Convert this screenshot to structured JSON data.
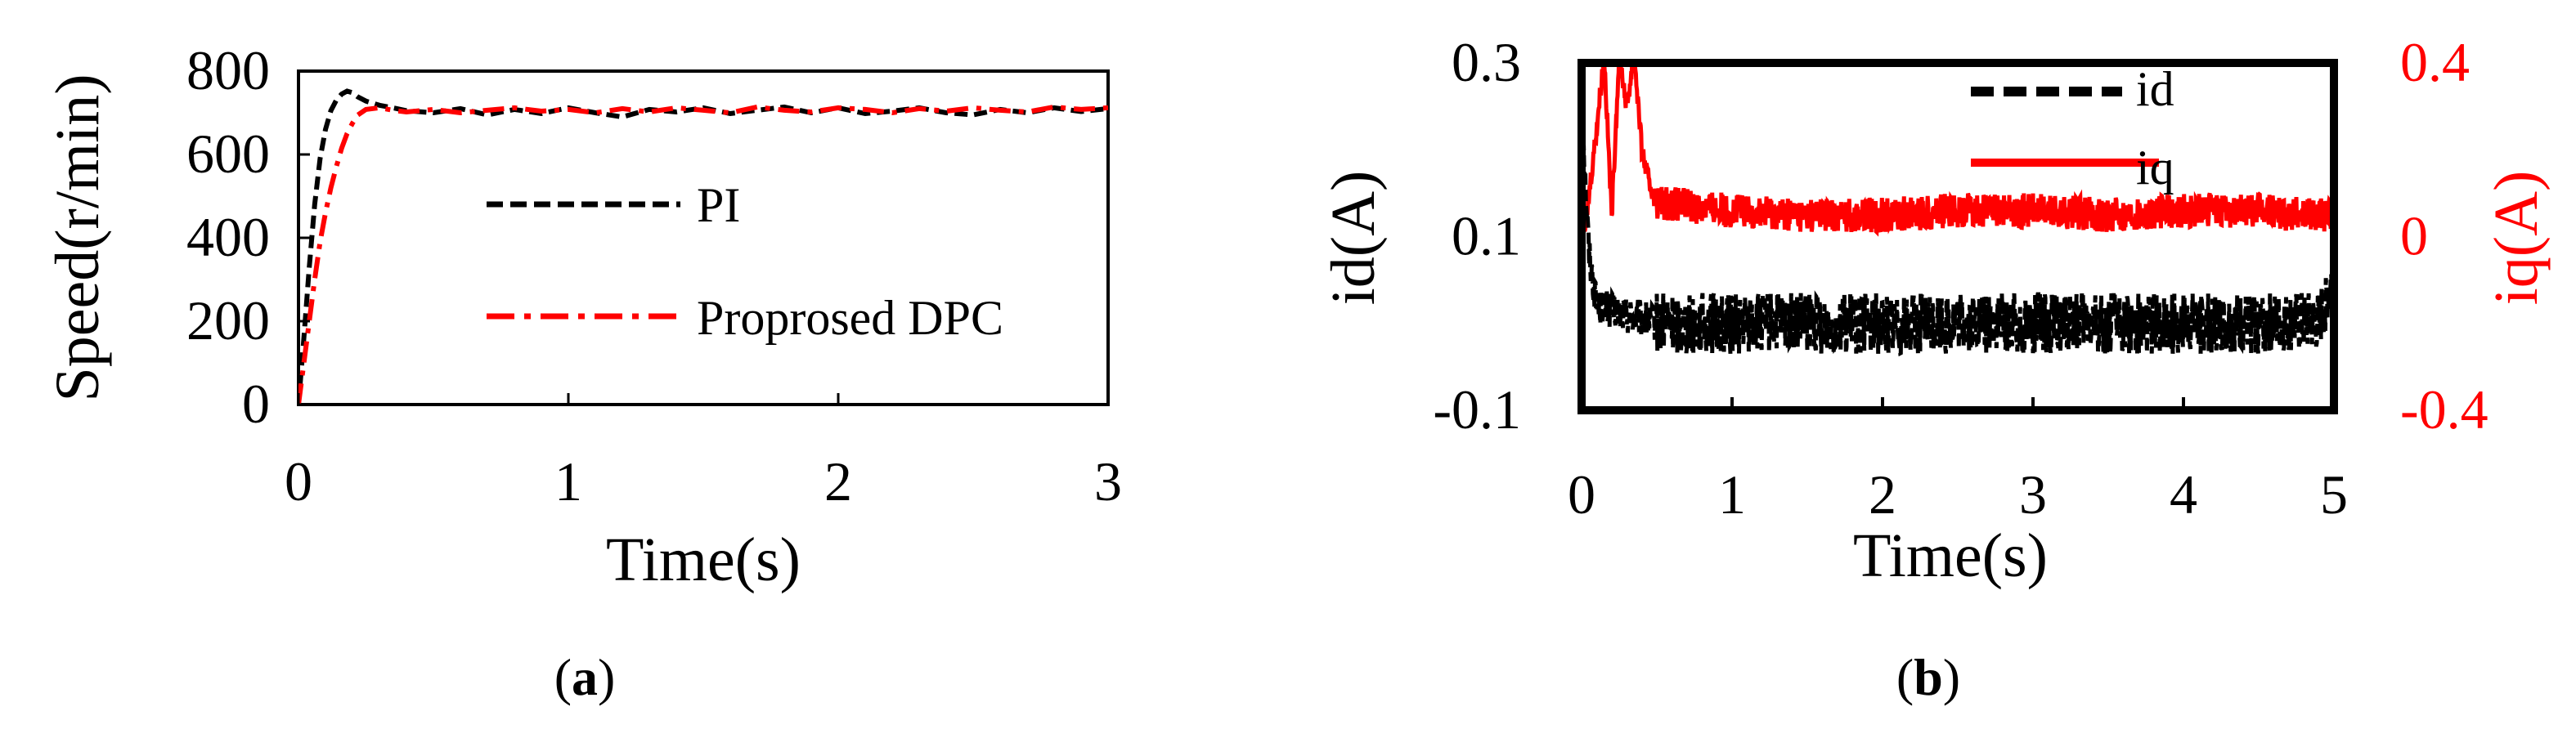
{
  "chart_data": [
    {
      "type": "line",
      "panel_label": "a",
      "xlabel": "Time(s)",
      "ylabel": "Speed(r/min)",
      "xlim": [
        0,
        3
      ],
      "ylim": [
        0,
        800
      ],
      "xticks": [
        "0",
        "1",
        "2",
        "3"
      ],
      "yticks": [
        "0",
        "200",
        "400",
        "600",
        "800"
      ],
      "grid": false,
      "legend_position": "center-right",
      "series": [
        {
          "name": "PI",
          "color": "#000000",
          "style": "dashed",
          "x": [
            0,
            0.02,
            0.04,
            0.06,
            0.08,
            0.1,
            0.12,
            0.14,
            0.16,
            0.18,
            0.2,
            0.22,
            0.25,
            0.3,
            0.35,
            0.4,
            0.5,
            0.6,
            0.7,
            0.8,
            0.9,
            1.0,
            1.1,
            1.2,
            1.3,
            1.4,
            1.5,
            1.6,
            1.7,
            1.8,
            1.9,
            2.0,
            2.1,
            2.2,
            2.3,
            2.4,
            2.5,
            2.6,
            2.7,
            2.8,
            2.9,
            3.0
          ],
          "y": [
            0,
            160,
            330,
            480,
            590,
            660,
            705,
            730,
            745,
            752,
            748,
            738,
            728,
            718,
            712,
            705,
            700,
            710,
            695,
            708,
            698,
            712,
            700,
            690,
            708,
            702,
            712,
            698,
            706,
            714,
            700,
            712,
            698,
            704,
            712,
            700,
            695,
            708,
            700,
            712,
            703,
            710
          ]
        },
        {
          "name": "Proprosed DPC",
          "color": "#ff0000",
          "style": "dashdot",
          "x": [
            0,
            0.02,
            0.04,
            0.06,
            0.08,
            0.1,
            0.12,
            0.14,
            0.16,
            0.18,
            0.2,
            0.22,
            0.25,
            0.3,
            0.35,
            0.4,
            0.5,
            0.6,
            0.7,
            0.8,
            0.9,
            1.0,
            1.1,
            1.2,
            1.3,
            1.4,
            1.5,
            1.6,
            1.7,
            1.8,
            1.9,
            2.0,
            2.1,
            2.2,
            2.3,
            2.4,
            2.5,
            2.6,
            2.7,
            2.8,
            2.9,
            3.0
          ],
          "y": [
            0,
            100,
            200,
            300,
            390,
            460,
            520,
            570,
            615,
            650,
            675,
            695,
            708,
            712,
            706,
            702,
            708,
            700,
            706,
            712,
            704,
            708,
            700,
            710,
            702,
            712,
            706,
            700,
            714,
            706,
            702,
            712,
            708,
            700,
            710,
            704,
            712,
            706,
            702,
            714,
            708,
            712
          ]
        }
      ]
    },
    {
      "type": "line",
      "panel_label": "b",
      "xlabel": "Time(s)",
      "ylabel": "id(A)",
      "y2label": "iq(A)",
      "xlim": [
        0,
        5
      ],
      "ylim": [
        -0.1,
        0.3
      ],
      "y2lim": [
        -0.4,
        0.4
      ],
      "xticks": [
        "0",
        "1",
        "2",
        "3",
        "4",
        "5"
      ],
      "yticks": [
        "-0.1",
        "0.1",
        "0.3"
      ],
      "y2ticks": [
        "-0.4",
        "0",
        "0.4"
      ],
      "grid": false,
      "legend_position": "top-right",
      "y2_color": "#ff0000",
      "series": [
        {
          "name": "id",
          "axis": "left",
          "color": "#000000",
          "style": "dashed",
          "x": [
            0,
            0.02,
            0.05,
            0.1,
            0.5,
            1,
            1.5,
            2,
            2.5,
            3,
            3.5,
            4,
            4.5,
            4.9,
            4.95,
            5.0
          ],
          "y": [
            0.27,
            0.18,
            0.08,
            0.02,
            0.0,
            0.0,
            0.0,
            0.0,
            0.0,
            0.0,
            0.0,
            0.0,
            0.0,
            0.0,
            0.03,
            0.06
          ],
          "noise_amplitude": 0.035
        },
        {
          "name": "iq",
          "axis": "right",
          "color": "#ff0000",
          "style": "solid",
          "x": [
            0,
            0.05,
            0.1,
            0.15,
            0.2,
            0.25,
            0.3,
            0.35,
            0.4,
            0.45,
            0.5,
            1,
            1.5,
            2,
            2.5,
            3,
            3.5,
            4,
            4.5,
            5.0
          ],
          "y": [
            -0.05,
            0.1,
            0.25,
            0.42,
            0.05,
            0.42,
            0.3,
            0.42,
            0.2,
            0.12,
            0.08,
            0.06,
            0.05,
            0.05,
            0.06,
            0.06,
            0.05,
            0.06,
            0.06,
            0.05
          ],
          "noise_amplitude": 0.04
        }
      ]
    }
  ]
}
